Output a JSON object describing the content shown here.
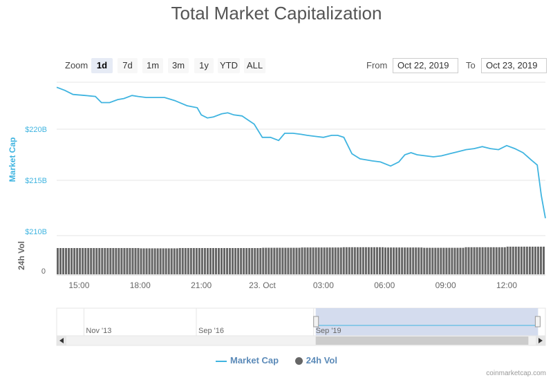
{
  "chart_data": {
    "type": "line",
    "title": "Total Market Capitalization",
    "zoom": {
      "label": "Zoom",
      "buttons": [
        "1d",
        "7d",
        "1m",
        "3m",
        "1y",
        "YTD",
        "ALL"
      ],
      "active": "1d"
    },
    "range": {
      "from_label": "From",
      "from": "Oct 22, 2019",
      "to_label": "To",
      "to": "Oct 23, 2019"
    },
    "xticks": [
      {
        "t": 15,
        "label": "15:00"
      },
      {
        "t": 18,
        "label": "18:00"
      },
      {
        "t": 21,
        "label": "21:00"
      },
      {
        "t": 24,
        "label": "23. Oct"
      },
      {
        "t": 27,
        "label": "03:00"
      },
      {
        "t": 30,
        "label": "06:00"
      },
      {
        "t": 33,
        "label": "09:00"
      },
      {
        "t": 36,
        "label": "12:00"
      }
    ],
    "xlim": [
      13.9,
      37.9
    ],
    "market_cap": {
      "name": "Market Cap",
      "color": "#3fb4e0",
      "ylabel": "Market Cap",
      "yticks": [
        {
          "v": 210,
          "label": "$210B"
        },
        {
          "v": 215,
          "label": "$215B"
        },
        {
          "v": 220,
          "label": "$220B"
        }
      ],
      "ylim": [
        210,
        225
      ],
      "x": [
        13.9,
        14.3,
        14.7,
        15.3,
        15.8,
        16.1,
        16.5,
        16.9,
        17.2,
        17.6,
        17.9,
        18.3,
        18.7,
        19.2,
        19.7,
        20.3,
        20.8,
        21.0,
        21.3,
        21.6,
        22.0,
        22.3,
        22.6,
        23.0,
        23.3,
        23.6,
        24.0,
        24.4,
        24.8,
        25.1,
        25.5,
        25.9,
        26.2,
        26.6,
        27.0,
        27.4,
        27.7,
        28.0,
        28.4,
        28.8,
        29.1,
        29.4,
        29.8,
        30.3,
        30.7,
        31.0,
        31.3,
        31.6,
        32.0,
        32.4,
        32.8,
        33.2,
        33.6,
        34.0,
        34.4,
        34.8,
        35.2,
        35.6,
        36.0,
        36.4,
        36.8,
        37.2,
        37.5,
        37.7,
        37.9
      ],
      "values": [
        224.1,
        223.8,
        223.4,
        223.3,
        223.2,
        222.6,
        222.6,
        222.9,
        223.0,
        223.3,
        223.2,
        223.1,
        223.1,
        223.1,
        222.8,
        222.3,
        222.1,
        221.4,
        221.1,
        221.2,
        221.5,
        221.6,
        221.4,
        221.3,
        220.9,
        220.5,
        219.2,
        219.2,
        218.9,
        219.6,
        219.6,
        219.5,
        219.4,
        219.3,
        219.2,
        219.4,
        219.4,
        219.2,
        217.6,
        217.1,
        217.0,
        216.9,
        216.8,
        216.4,
        216.8,
        217.5,
        217.7,
        217.5,
        217.4,
        217.3,
        217.4,
        217.6,
        217.8,
        218.0,
        218.1,
        218.3,
        218.1,
        218.0,
        218.4,
        218.1,
        217.7,
        217.0,
        216.5,
        213.5,
        211.3
      ]
    },
    "volume": {
      "name": "24h Vol",
      "color": "#666666",
      "ylabel": "24h Vol",
      "ytick_label": "0",
      "values": [
        0.95,
        0.95,
        0.94,
        0.95,
        0.95,
        0.96,
        0.97,
        0.98,
        0.97,
        0.96,
        0.98,
        1.0
      ]
    },
    "navigator": {
      "labels": [
        "Nov '13",
        "Sep '16",
        "Sep '19"
      ],
      "label_pos": [
        0.06,
        0.29,
        0.53
      ],
      "selection": [
        0.53,
        0.985
      ]
    },
    "credit": "coinmarketcap.com"
  }
}
